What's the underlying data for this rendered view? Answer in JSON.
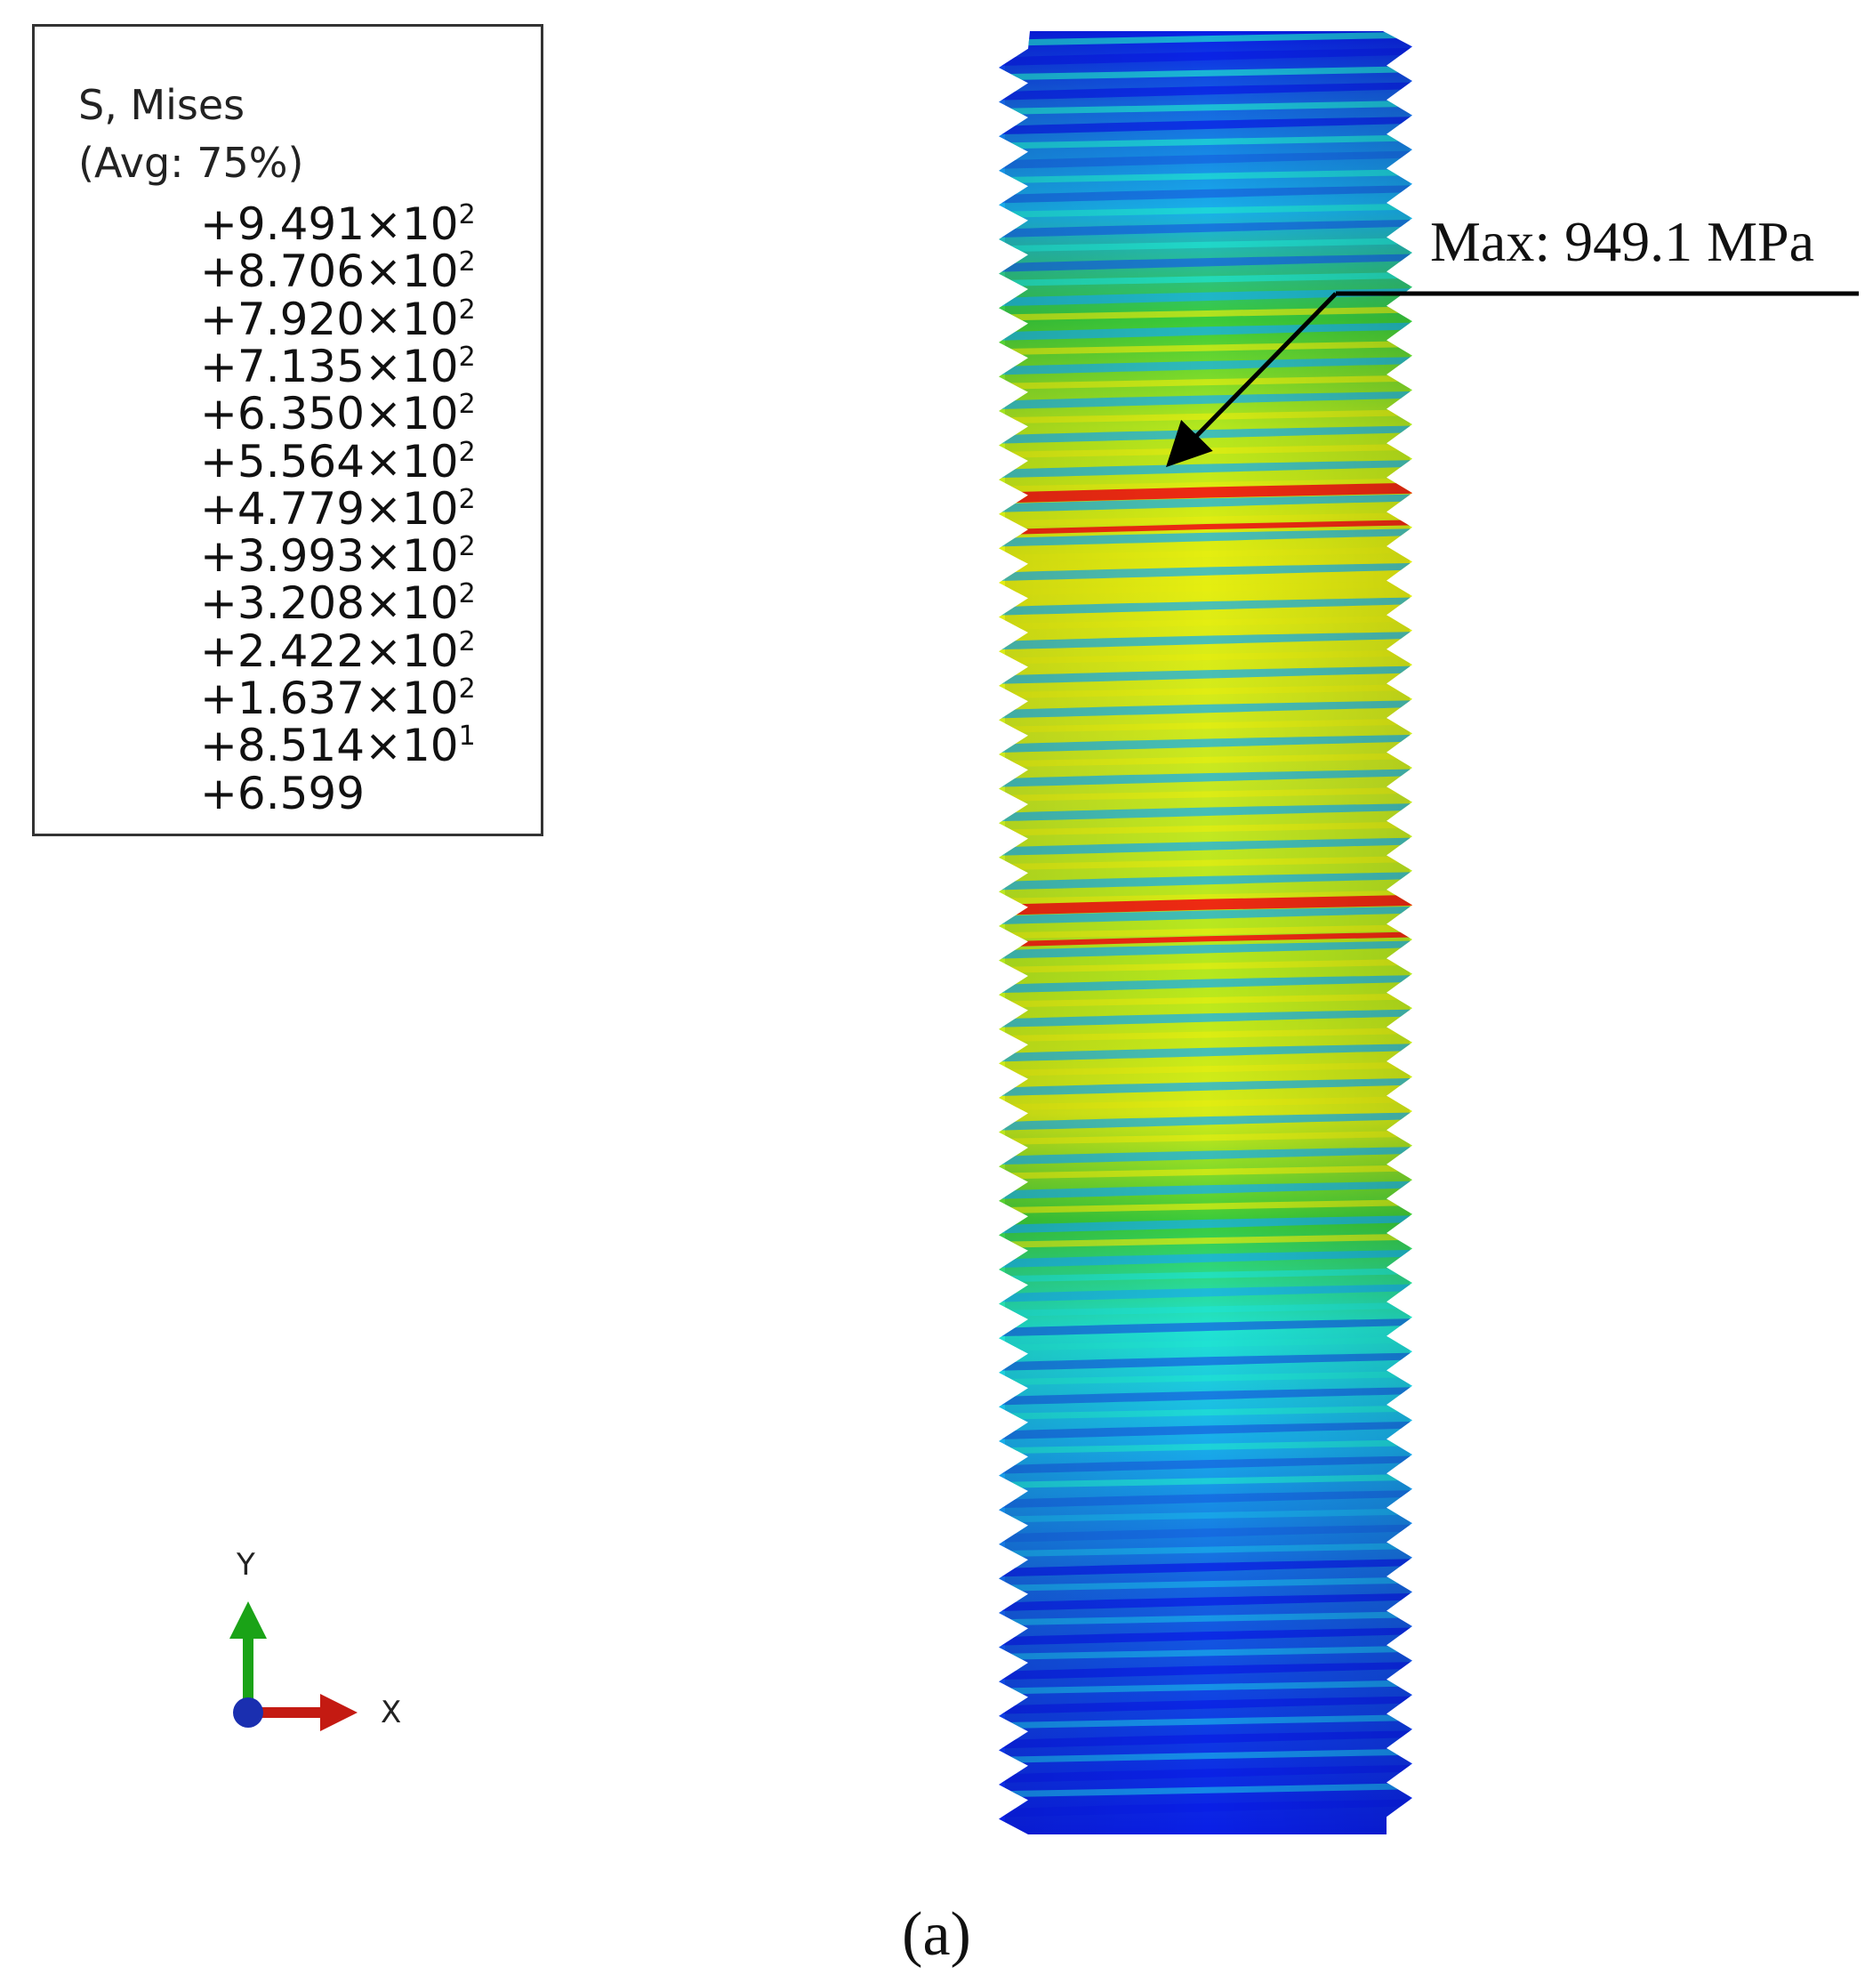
{
  "legend": {
    "title_line1": "S, Mises",
    "title_line2": "(Avg: 75%)",
    "entries": [
      {
        "mantissa": "+9.491",
        "exp": "2"
      },
      {
        "mantissa": "+8.706",
        "exp": "2"
      },
      {
        "mantissa": "+7.920",
        "exp": "2"
      },
      {
        "mantissa": "+7.135",
        "exp": "2"
      },
      {
        "mantissa": "+6.350",
        "exp": "2"
      },
      {
        "mantissa": "+5.564",
        "exp": "2"
      },
      {
        "mantissa": "+4.779",
        "exp": "2"
      },
      {
        "mantissa": "+3.993",
        "exp": "2"
      },
      {
        "mantissa": "+3.208",
        "exp": "2"
      },
      {
        "mantissa": "+2.422",
        "exp": "2"
      },
      {
        "mantissa": "+1.637",
        "exp": "2"
      },
      {
        "mantissa": "+8.514",
        "exp": "1"
      },
      {
        "mantissa": "+6.599",
        "exp": ""
      }
    ],
    "band_colors": [
      "#ee1c10",
      "#e52714",
      "#df2c15",
      "#e83512",
      "#f4680d",
      "#e6f000",
      "#a9e600",
      "#5ed62b",
      "#38cc3a",
      "#1ef2d8",
      "#12b2ef",
      "#0b63ea",
      "#0a1ee6"
    ]
  },
  "annotation": {
    "label": "Max: 949.1 MPa"
  },
  "axes": {
    "y": "Y",
    "x": "X",
    "z": "Z"
  },
  "caption": "(a)",
  "colors": {
    "deep_blue": "#0a1ee6",
    "blue": "#1565e0",
    "light_blue": "#19b0ea",
    "cyan": "#20e4d2",
    "green": "#3acb3a",
    "yellow_green": "#b4e81e",
    "yellow": "#e6ee10",
    "red": "#ee2a12",
    "axis_y": "#1aa317",
    "axis_x": "#c41a12",
    "axis_z": "#1a2fb0"
  }
}
